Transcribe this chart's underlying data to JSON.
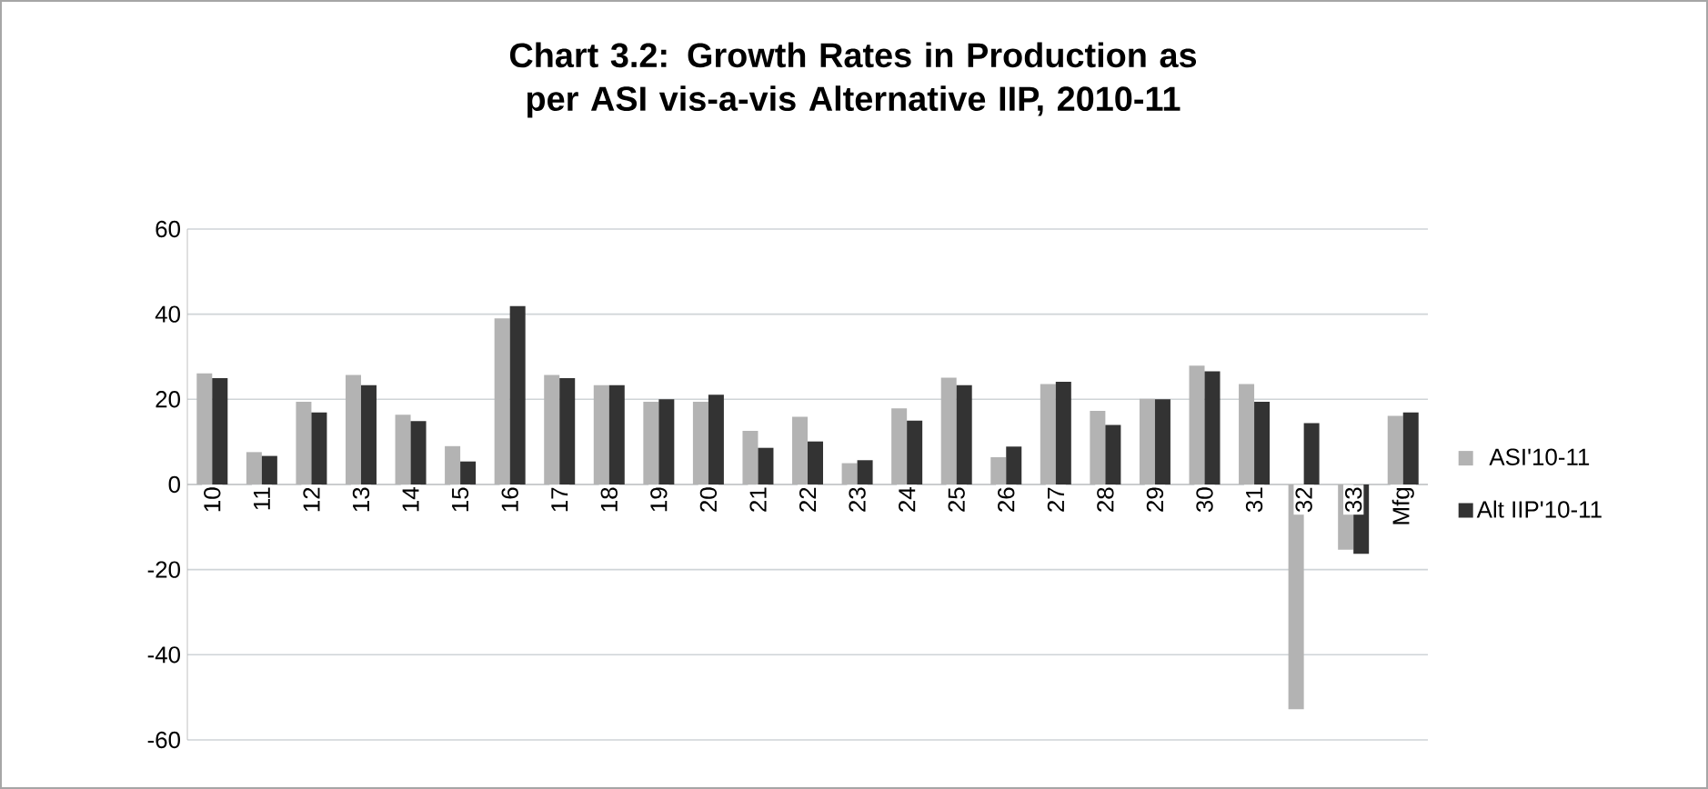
{
  "chart_data": {
    "type": "bar",
    "title": "Chart 3.2: Growth Rates in Production as per ASI vis-a-vis Alternative IIP, 2010-11",
    "categories": [
      "10",
      "11",
      "12",
      "13",
      "14",
      "15",
      "16",
      "17",
      "18",
      "19",
      "20",
      "21",
      "22",
      "23",
      "24",
      "25",
      "26",
      "27",
      "28",
      "29",
      "30",
      "31",
      "32",
      "33",
      "Mfg"
    ],
    "series": [
      {
        "name": "ASI'10-11",
        "color": "#b3b3b3",
        "values": [
          26.1,
          7.6,
          19.4,
          25.7,
          16.4,
          9,
          39,
          25.7,
          23.3,
          19.4,
          19.4,
          12.6,
          15.9,
          5,
          17.9,
          25.1,
          6.4,
          23.6,
          17.3,
          20.1,
          27.9,
          23.6,
          -52.8,
          -15.3,
          16.1
        ]
      },
      {
        "name": "Alt IIP'10-11",
        "color": "#333333",
        "values": [
          25,
          6.7,
          16.9,
          23.3,
          14.9,
          5.4,
          41.9,
          25,
          23.3,
          20,
          21.1,
          8.6,
          10.1,
          5.7,
          15,
          23.3,
          8.9,
          24.1,
          14,
          20,
          26.6,
          19.4,
          14.4,
          -16.3,
          16.9
        ]
      }
    ],
    "ylim": [
      -60,
      60
    ],
    "yticks": [
      -60,
      -40,
      -20,
      0,
      20,
      40,
      60
    ],
    "grid": "y",
    "legend": "right"
  }
}
